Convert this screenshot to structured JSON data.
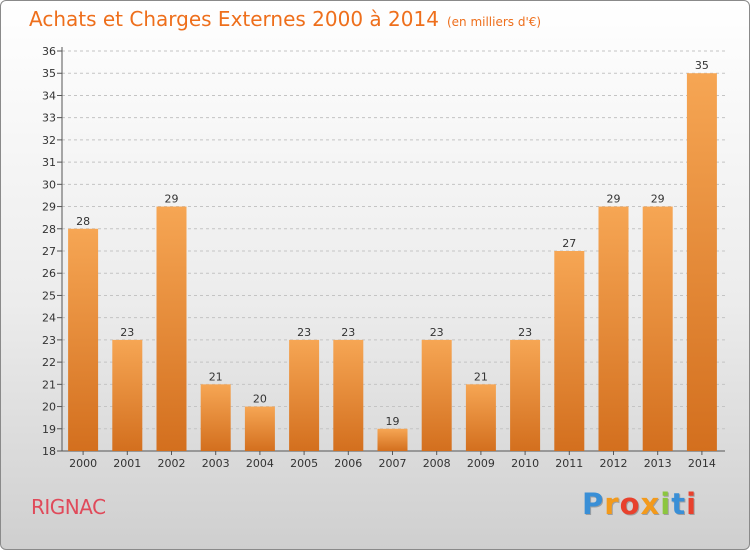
{
  "title": "Achats et Charges Externes 2000 à 2014",
  "subtitle": "(en milliers d'€)",
  "city": "RIGNAC",
  "logo": {
    "letters": [
      "P",
      "r",
      "o",
      "x",
      "i",
      "t",
      "i"
    ],
    "colors": [
      "#3a8fd6",
      "#f39a1b",
      "#e8412d",
      "#f39a1b",
      "#8cc63f",
      "#3a8fd6",
      "#e8412d"
    ]
  },
  "colors": {
    "bar_top": "#f6a654",
    "bar_bottom": "#d36f1e",
    "title": "#ee6f1c",
    "city": "#e04a5a",
    "grid": "#c4c4c4"
  },
  "chart_data": {
    "type": "bar",
    "categories": [
      "2000",
      "2001",
      "2002",
      "2003",
      "2004",
      "2005",
      "2006",
      "2007",
      "2008",
      "2009",
      "2010",
      "2011",
      "2012",
      "2013",
      "2014"
    ],
    "values": [
      28,
      23,
      29,
      21,
      20,
      23,
      23,
      19,
      23,
      21,
      23,
      27,
      29,
      29,
      35
    ],
    "data_labels": [
      "28",
      "23",
      "29",
      "21",
      "20",
      "23",
      "23",
      "19",
      "23",
      "21",
      "23",
      "27",
      "29",
      "29",
      "35"
    ],
    "y_ticks": [
      "18",
      "19",
      "20",
      "21",
      "22",
      "23",
      "24",
      "25",
      "26",
      "27",
      "28",
      "29",
      "30",
      "31",
      "32",
      "33",
      "34",
      "35",
      "36"
    ],
    "ylim": [
      18,
      36
    ],
    "grid": true,
    "title": "Achats et Charges Externes 2000 à 2014",
    "xlabel": "",
    "ylabel": ""
  }
}
